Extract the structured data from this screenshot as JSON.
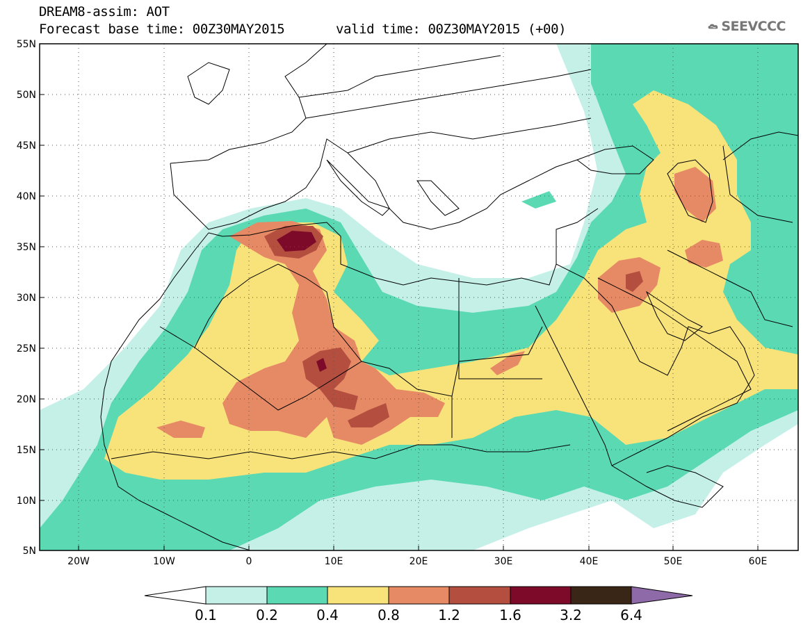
{
  "header": {
    "title": "DREAM8-assim: AOT",
    "forecast_base": "Forecast base time: 00Z30MAY2015",
    "valid_time": "valid time: 00Z30MAY2015 (+00)"
  },
  "logo": {
    "text": "SEEVCCC",
    "icon": "cloud-icon"
  },
  "axes": {
    "lon_labels": [
      "20W",
      "10W",
      "0",
      "10E",
      "20E",
      "30E",
      "40E",
      "50E",
      "60E"
    ],
    "lat_labels": [
      "55N",
      "50N",
      "45N",
      "40N",
      "35N",
      "30N",
      "25N",
      "20N",
      "15N",
      "10N",
      "5N"
    ]
  },
  "colorbar": {
    "labels": [
      "0.1",
      "0.2",
      "0.4",
      "0.8",
      "1.2",
      "1.6",
      "3.2",
      "6.4"
    ],
    "colors": [
      "#ffffff",
      "#c4f0e8",
      "#5ad9b3",
      "#f8e27a",
      "#e68a66",
      "#b44f40",
      "#7e0a2a",
      "#3a2616",
      "#8f6aa8"
    ]
  }
}
